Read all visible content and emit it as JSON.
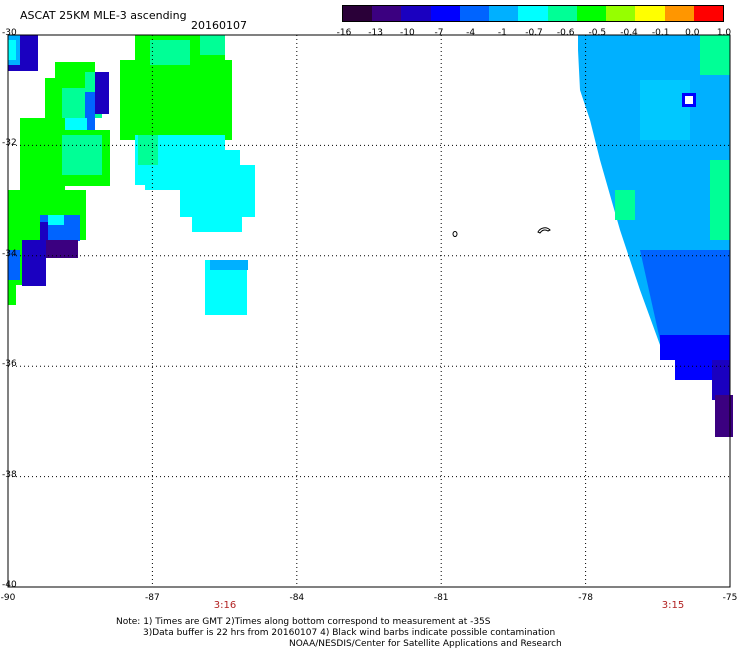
{
  "header": {
    "title": "ASCAT 25KM MLE-3 ascending",
    "date": "20160107"
  },
  "colorbar": {
    "labels": [
      "-16",
      "-13",
      "-10",
      "-7",
      "-4",
      "-1",
      "-0.7",
      "-0.6",
      "-0.5",
      "-0.4",
      "-0.1",
      "0.0",
      "1.0"
    ],
    "colors": [
      "#2a0038",
      "#3b0080",
      "#1a00c0",
      "#0000ff",
      "#0064ff",
      "#00b0ff",
      "#00ffff",
      "#00ff96",
      "#00ff00",
      "#96ff00",
      "#ffff00",
      "#ff9600",
      "#ff0000"
    ]
  },
  "axes": {
    "y_labels": [
      "-30",
      "-32",
      "-34",
      "-36",
      "-38",
      "-40"
    ],
    "x_labels": [
      "-90",
      "-87",
      "-84",
      "-81",
      "-78",
      "-75"
    ]
  },
  "pass_times": [
    "3:16",
    "3:15"
  ],
  "notes": {
    "line1": "Note: 1) Times are GMT 2)Times along bottom correspond to measurement at -35S",
    "line2": "3)Data buffer is 22 hrs from 20160107 4) Black wind barbs indicate possible contamination",
    "line3": "NOAA/NESDIS/Center for Satellite Applications and Research"
  }
}
